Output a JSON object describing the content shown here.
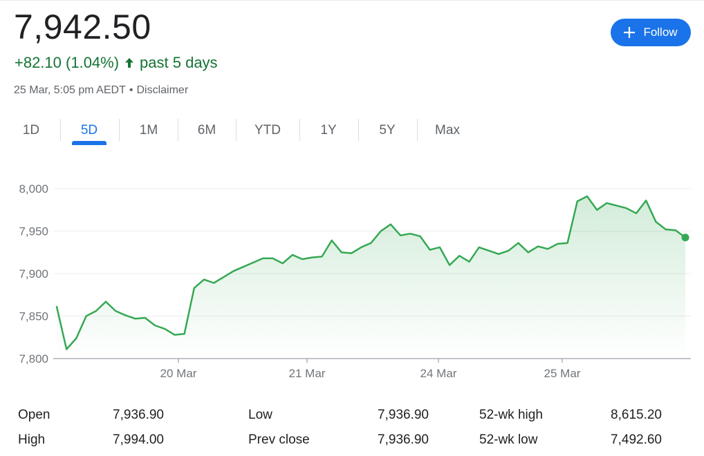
{
  "quote": {
    "price": "7,942.50",
    "change": "+82.10 (1.04%)",
    "change_period": "past 5 days",
    "timestamp": "25 Mar, 5:05 pm AEDT",
    "separator": "•",
    "disclaimer": "Disclaimer",
    "up_color": "#137333",
    "up_icon": "arrow-up-icon"
  },
  "follow_button": {
    "label": "Follow",
    "icon": "plus-icon",
    "color": "#1a73e8"
  },
  "tabs": [
    {
      "label": "1D"
    },
    {
      "label": "5D",
      "active": true
    },
    {
      "label": "1M"
    },
    {
      "label": "6M"
    },
    {
      "label": "YTD"
    },
    {
      "label": "1Y"
    },
    {
      "label": "5Y"
    },
    {
      "label": "Max"
    }
  ],
  "chart_data": {
    "type": "area",
    "line_color": "#34a853",
    "y_ticks": [
      "8,000",
      "7,950",
      "7,900",
      "7,850",
      "7,800"
    ],
    "ylim": [
      7800,
      8000
    ],
    "x_tick_labels": [
      "20 Mar",
      "21 Mar",
      "24 Mar",
      "25 Mar"
    ],
    "grid": true,
    "series": [
      {
        "values": [
          7861,
          7811,
          7824,
          7850,
          7856,
          7867,
          7856,
          7851,
          7847,
          7848,
          7839,
          7835,
          7828,
          7829,
          7883,
          7893,
          7889,
          7896,
          7903,
          7908,
          7913,
          7918,
          7918,
          7912,
          7922,
          7917,
          7919,
          7920,
          7939,
          7925,
          7924,
          7931,
          7936,
          7950,
          7958,
          7945,
          7947,
          7944,
          7928,
          7931,
          7910,
          7921,
          7914,
          7931,
          7927,
          7923,
          7927,
          7936,
          7925,
          7932,
          7929,
          7935,
          7936,
          7985,
          7991,
          7975,
          7983,
          7980,
          7977,
          7971,
          7986,
          7961,
          7952,
          7951,
          7942.5
        ]
      }
    ]
  },
  "stats": [
    {
      "label": "Open",
      "value": "7,936.90"
    },
    {
      "label": "High",
      "value": "7,994.00"
    },
    {
      "label": "Low",
      "value": "7,936.90"
    },
    {
      "label": "Prev close",
      "value": "7,936.90"
    },
    {
      "label": "52-wk high",
      "value": "8,615.20"
    },
    {
      "label": "52-wk low",
      "value": "7,492.60"
    }
  ]
}
